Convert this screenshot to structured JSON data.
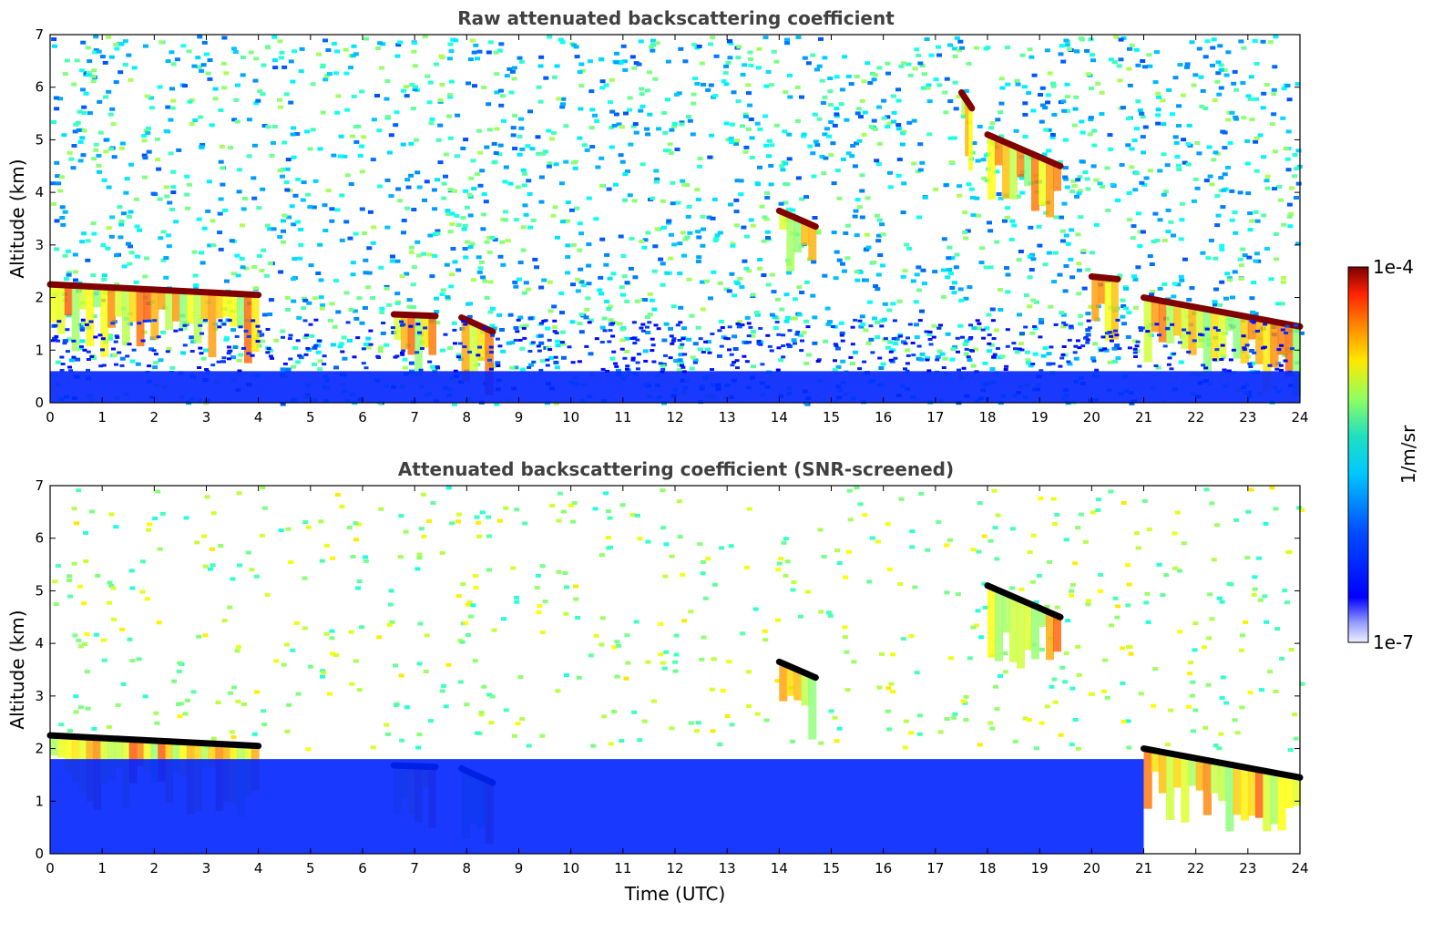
{
  "figure": {
    "xlabel": "Time (UTC)",
    "colorbar": {
      "label": "1/m/sr",
      "max_label": "1e-4",
      "min_label": "1e-7",
      "scale": "log",
      "min": 1e-07,
      "max": 0.0001,
      "colormap": "jet"
    }
  },
  "chart_data": [
    {
      "type": "heatmap",
      "title": "Raw attenuated backscattering coefficient",
      "xlabel": "",
      "ylabel": "Altitude (km)",
      "xlim": [
        0,
        24
      ],
      "ylim": [
        0,
        7
      ],
      "x_ticks": [
        "0",
        "1",
        "2",
        "3",
        "4",
        "5",
        "6",
        "7",
        "8",
        "9",
        "10",
        "11",
        "12",
        "13",
        "14",
        "15",
        "16",
        "17",
        "18",
        "19",
        "20",
        "21",
        "22",
        "23",
        "24"
      ],
      "y_ticks": [
        "0",
        "1",
        "2",
        "3",
        "4",
        "5",
        "6",
        "7"
      ],
      "grid": false,
      "features": [
        {
          "kind": "cloud_layer",
          "t_start": 0.0,
          "t_end": 4.0,
          "alt_start_km": 2.25,
          "alt_end_km": 2.05,
          "peak": 0.0001
        },
        {
          "kind": "cloud_layer",
          "t_start": 6.6,
          "t_end": 7.4,
          "alt_start_km": 1.68,
          "alt_end_km": 1.65,
          "peak": 0.0001
        },
        {
          "kind": "cloud_layer",
          "t_start": 7.9,
          "t_end": 8.5,
          "alt_start_km": 1.62,
          "alt_end_km": 1.35,
          "peak": 0.0001
        },
        {
          "kind": "cloud_layer",
          "t_start": 14.0,
          "t_end": 14.7,
          "alt_start_km": 3.65,
          "alt_end_km": 3.35,
          "peak": 0.0001
        },
        {
          "kind": "cloud_layer",
          "t_start": 17.5,
          "t_end": 17.7,
          "alt_start_km": 5.9,
          "alt_end_km": 5.6,
          "peak": 0.0001
        },
        {
          "kind": "cloud_layer",
          "t_start": 18.0,
          "t_end": 19.4,
          "alt_start_km": 5.1,
          "alt_end_km": 4.5,
          "peak": 0.0001
        },
        {
          "kind": "cloud_layer",
          "t_start": 20.0,
          "t_end": 20.5,
          "alt_start_km": 2.4,
          "alt_end_km": 2.35,
          "peak": 0.0001
        },
        {
          "kind": "cloud_layer",
          "t_start": 21.0,
          "t_end": 24.0,
          "alt_start_km": 2.0,
          "alt_end_km": 1.45,
          "peak": 0.0001
        },
        {
          "kind": "boundary_layer",
          "t_start": 0.0,
          "t_end": 24.0,
          "alt_top_km": 0.6,
          "value": 3e-07
        }
      ]
    },
    {
      "type": "heatmap",
      "title": "Attenuated backscattering coefficient (SNR-screened)",
      "xlabel": "Time (UTC)",
      "ylabel": "Altitude (km)",
      "xlim": [
        0,
        24
      ],
      "ylim": [
        0,
        7
      ],
      "x_ticks": [
        "0",
        "1",
        "2",
        "3",
        "4",
        "5",
        "6",
        "7",
        "8",
        "9",
        "10",
        "11",
        "12",
        "13",
        "14",
        "15",
        "16",
        "17",
        "18",
        "19",
        "20",
        "21",
        "22",
        "23",
        "24"
      ],
      "y_ticks": [
        "0",
        "1",
        "2",
        "3",
        "4",
        "5",
        "6",
        "7"
      ],
      "grid": false,
      "features": [
        {
          "kind": "cloud_layer",
          "t_start": 0.0,
          "t_end": 4.0,
          "alt_start_km": 2.25,
          "alt_end_km": 2.05,
          "peak": 0.0001
        },
        {
          "kind": "cloud_layer",
          "t_start": 6.6,
          "t_end": 7.4,
          "alt_start_km": 1.68,
          "alt_end_km": 1.65,
          "peak": 0.0001
        },
        {
          "kind": "cloud_layer",
          "t_start": 7.9,
          "t_end": 8.5,
          "alt_start_km": 1.62,
          "alt_end_km": 1.35,
          "peak": 0.0001
        },
        {
          "kind": "cloud_layer",
          "t_start": 14.0,
          "t_end": 14.7,
          "alt_start_km": 3.65,
          "alt_end_km": 3.35,
          "peak": 0.0001
        },
        {
          "kind": "cloud_layer",
          "t_start": 18.0,
          "t_end": 19.4,
          "alt_start_km": 5.1,
          "alt_end_km": 4.5,
          "peak": 0.0001
        },
        {
          "kind": "cloud_layer",
          "t_start": 21.0,
          "t_end": 24.0,
          "alt_start_km": 2.0,
          "alt_end_km": 1.45,
          "peak": 0.0001
        },
        {
          "kind": "screened_boundary_layer",
          "t_start": 0.0,
          "t_end": 21.0,
          "alt_top_km": 1.8,
          "value": 3e-07
        }
      ]
    }
  ]
}
